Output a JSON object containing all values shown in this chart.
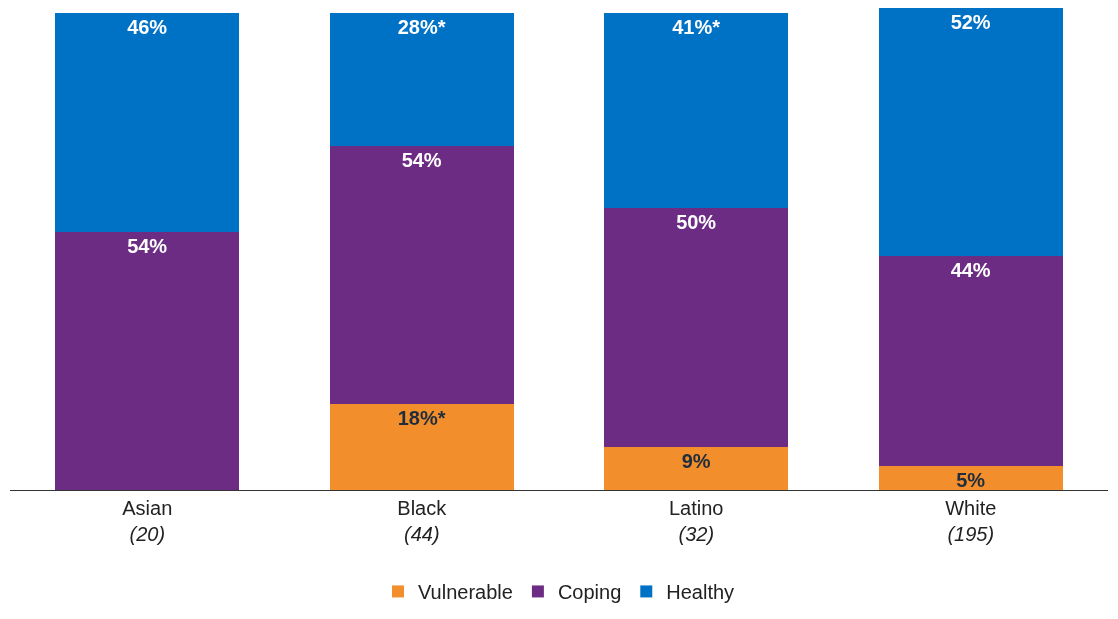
{
  "chart_data": {
    "type": "bar",
    "stacked": true,
    "categories": [
      "Asian\n(20)",
      "Black\n(44)",
      "Latino\n(32)",
      "White\n(195)"
    ],
    "series": [
      {
        "name": "Vulnerable",
        "color": "#f28e2b",
        "values": [
          0,
          18,
          9,
          5
        ],
        "value_labels": [
          null,
          "18%*",
          "9%",
          "5%"
        ]
      },
      {
        "name": "Coping",
        "color": "#6d2c83",
        "values": [
          54,
          54,
          50,
          44
        ],
        "value_labels": [
          "54%",
          "54%",
          "50%",
          "44%"
        ]
      },
      {
        "name": "Healthy",
        "color": "#0072c6",
        "values": [
          46,
          28,
          41,
          52
        ],
        "value_labels": [
          "46%",
          "28%*",
          "41%*",
          "52%"
        ]
      }
    ],
    "legend": "bottom"
  }
}
